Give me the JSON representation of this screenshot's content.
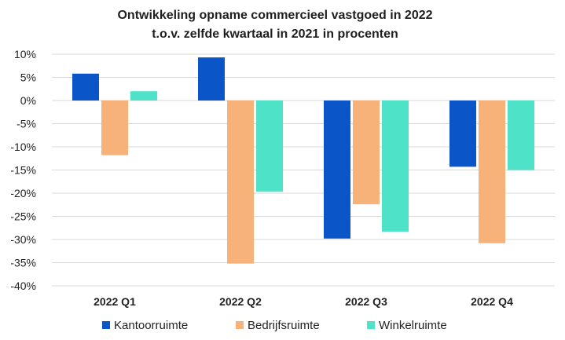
{
  "chart_data": {
    "type": "bar",
    "title": "Ontwikkeling opname commercieel vastgoed in 2022",
    "subtitle": "t.o.v. zelfde kwartaal in 2021 in procenten",
    "categories": [
      "2022 Q1",
      "2022 Q2",
      "2022 Q3",
      "2022 Q4"
    ],
    "series": [
      {
        "name": "Kantoorruimte",
        "color": "#0a55c8",
        "values": [
          5.8,
          9.3,
          -29.8,
          -14.3
        ]
      },
      {
        "name": "Bedrijfsruimte",
        "color": "#f7b27a",
        "values": [
          -11.8,
          -35.2,
          -22.4,
          -30.8
        ]
      },
      {
        "name": "Winkelruimte",
        "color": "#4ee3c8",
        "values": [
          2.0,
          -19.7,
          -28.3,
          -15.0
        ]
      }
    ],
    "ylim": [
      -40,
      10
    ],
    "yticks": [
      10,
      5,
      0,
      -5,
      -10,
      -15,
      -20,
      -25,
      -30,
      -35,
      -40
    ],
    "ytick_labels": [
      "10%",
      "5%",
      "0%",
      "-5%",
      "-10%",
      "-15%",
      "-20%",
      "-25%",
      "-30%",
      "-35%",
      "-40%"
    ],
    "grid": true,
    "legend_position": "bottom"
  }
}
